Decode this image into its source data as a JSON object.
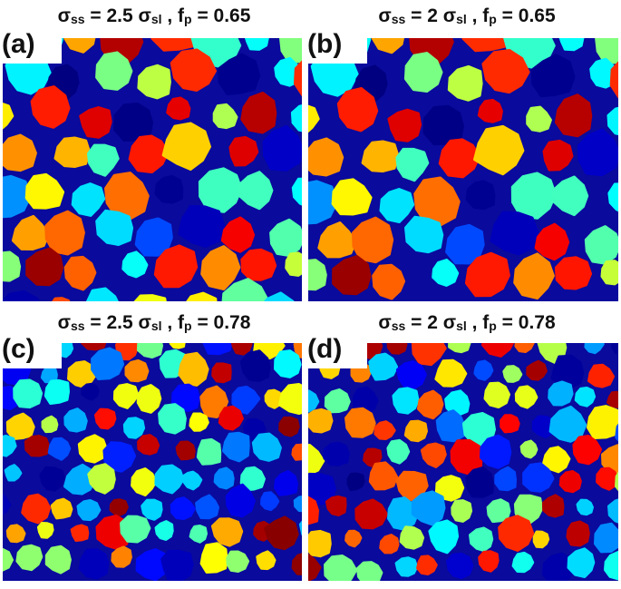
{
  "panels": [
    {
      "label": "(a)",
      "title": [
        "σ",
        "ss",
        " = 2.5  σ",
        "sl",
        " , f",
        "p",
        "  = 0.65"
      ]
    },
    {
      "label": "(b)",
      "title": [
        "σ",
        "ss",
        " = 2  σ",
        "sl",
        " , f",
        "p",
        "  = 0.65"
      ]
    },
    {
      "label": "(c)",
      "title": [
        "σ",
        "ss",
        " = 2.5  σ",
        "sl",
        " , f",
        "p",
        "  = 0.78"
      ]
    },
    {
      "label": "(d)",
      "title": [
        "σ",
        "ss",
        " = 2 σ",
        "sl",
        " , f",
        "p",
        "  = 0.78"
      ]
    }
  ]
}
